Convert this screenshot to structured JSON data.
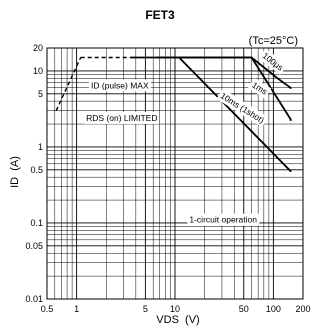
{
  "chart_data": {
    "type": "line",
    "title": "FET3",
    "subtitle": "(Tc=25°C)",
    "xlabel": "VDS  (V)",
    "ylabel": "ID  (A)",
    "xscale": "log",
    "yscale": "log",
    "xlim": [
      0.5,
      200
    ],
    "ylim": [
      0.01,
      20
    ],
    "grid": true,
    "x_ticks": [
      {
        "v": 0.5,
        "label": "0.5"
      },
      {
        "v": 1,
        "label": "1"
      },
      {
        "v": 5,
        "label": "5"
      },
      {
        "v": 10,
        "label": "10"
      },
      {
        "v": 50,
        "label": "50"
      },
      {
        "v": 100,
        "label": "100"
      },
      {
        "v": 200,
        "label": "200"
      }
    ],
    "y_ticks": [
      {
        "v": 0.01,
        "label": "0.01"
      },
      {
        "v": 0.05,
        "label": "0.05"
      },
      {
        "v": 0.1,
        "label": "0.1"
      },
      {
        "v": 0.5,
        "label": "0.5"
      },
      {
        "v": 1,
        "label": "1"
      },
      {
        "v": 5,
        "label": "5"
      },
      {
        "v": 10,
        "label": "10"
      },
      {
        "v": 20,
        "label": "20"
      }
    ],
    "series": [
      {
        "name": "100μs",
        "style": "solid",
        "x": [
          3.5,
          60,
          110,
          150,
          150
        ],
        "y": [
          15,
          15,
          8,
          6,
          5.8
        ]
      },
      {
        "name": "1ms",
        "style": "solid",
        "x": [
          6.5,
          60,
          150,
          150
        ],
        "y": [
          15,
          15,
          2.3,
          2.2
        ]
      },
      {
        "name": "10ms (1shot)",
        "style": "solid",
        "x": [
          11,
          150,
          150
        ],
        "y": [
          15,
          0.48,
          0.47
        ]
      },
      {
        "name": "ID (pulse) MAX",
        "style": "dashed",
        "x": [
          1.1,
          3.5
        ],
        "y": [
          15,
          15
        ]
      },
      {
        "name": "RDS (on) LIMITED",
        "style": "dashed",
        "x": [
          0.62,
          1.1
        ],
        "y": [
          3.0,
          15
        ]
      }
    ],
    "annotations": [
      {
        "text": "ID (pulse)  MAX",
        "x": 1.4,
        "y": 6.3
      },
      {
        "text": "RDS (on)  LIMITED",
        "x": 1.25,
        "y": 2.35
      },
      {
        "text": "100μs",
        "x": 98,
        "y": 13
      },
      {
        "text": "1ms",
        "x": 72,
        "y": 5.8
      },
      {
        "text": "10ms (1shot)",
        "x": 48,
        "y": 3.2
      },
      {
        "text": "1-circuit operation",
        "x": 14,
        "y": 0.108
      }
    ],
    "colors": {
      "line": "#000000",
      "grid": "#000000",
      "background": "#ffffff"
    }
  }
}
